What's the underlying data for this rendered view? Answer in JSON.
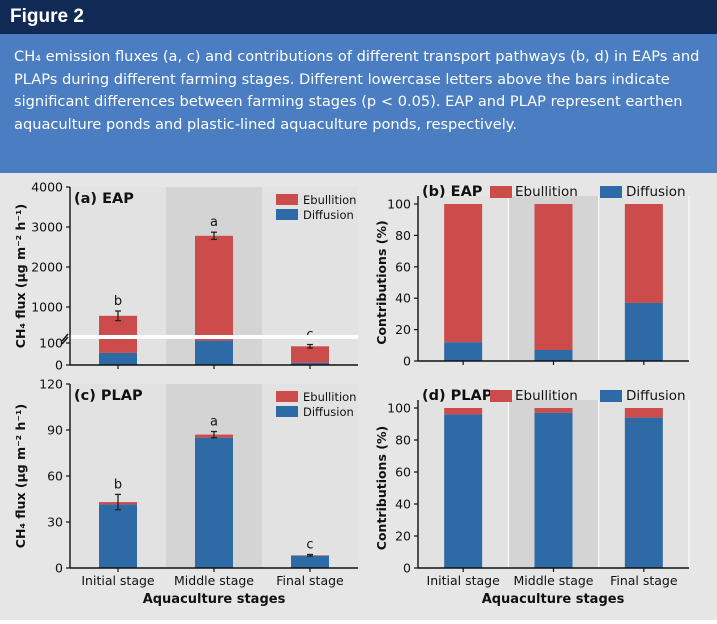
{
  "header": {
    "title": "Figure 2"
  },
  "caption": "CH₄ emission fluxes (a, c) and contributions of different transport pathways (b, d) in EAPs and PLAPs during different farming stages. Different lowercase letters above the bars indicate significant differences between farming stages (p < 0.05). EAP and PLAP represent earthen aquaculture ponds and plastic-lined aquaculture ponds, respectively.",
  "colors": {
    "ebullition": "#cc4b4b",
    "diffusion": "#2e6aa6",
    "header_bg": "#102a55",
    "caption_bg": "#4a7dc1"
  },
  "shared": {
    "xlabel": "Aquaculture stages",
    "categories": [
      "Initial stage",
      "Middle stage",
      "Final stage"
    ],
    "legend": {
      "ebullition": "Ebullition",
      "diffusion": "Diffusion"
    }
  },
  "chart_data": [
    {
      "id": "a",
      "type": "bar",
      "stacked": true,
      "title": "(a) EAP",
      "ylabel": "CH₄ flux (μg m⁻² h⁻¹)",
      "ylim": [
        0,
        4000
      ],
      "axis_break": true,
      "yticks": [
        0,
        100,
        1000,
        2000,
        3000,
        4000
      ],
      "categories": [
        "Initial stage",
        "Middle stage",
        "Final stage"
      ],
      "series": [
        {
          "name": "Diffusion",
          "values": [
            55,
            160,
            10
          ]
        },
        {
          "name": "Ebullition",
          "values": [
            725,
            2620,
            75
          ]
        }
      ],
      "totals": [
        780,
        2780,
        85
      ],
      "error_bars": [
        120,
        90,
        8
      ],
      "sig_letters": [
        "b",
        "a",
        "c"
      ],
      "legend_position": "top-right"
    },
    {
      "id": "b",
      "type": "bar",
      "stacked": true,
      "title": "(b) EAP",
      "ylabel": "Contributions (%)",
      "ylim": [
        0,
        100
      ],
      "yticks": [
        0,
        20,
        40,
        60,
        80,
        100
      ],
      "categories": [
        "Initial stage",
        "Middle stage",
        "Final stage"
      ],
      "series": [
        {
          "name": "Diffusion",
          "values": [
            12,
            7,
            37
          ]
        },
        {
          "name": "Ebullition",
          "values": [
            88,
            93,
            63
          ]
        }
      ],
      "legend_position": "top"
    },
    {
      "id": "c",
      "type": "bar",
      "stacked": true,
      "title": "(c) PLAP",
      "ylabel": "CH₄ flux (μg m⁻² h⁻¹)",
      "ylim": [
        0,
        120
      ],
      "yticks": [
        0,
        30,
        60,
        90,
        120
      ],
      "categories": [
        "Initial stage",
        "Middle stage",
        "Final stage"
      ],
      "series": [
        {
          "name": "Diffusion",
          "values": [
            41.5,
            85,
            8
          ]
        },
        {
          "name": "Ebullition",
          "values": [
            1.5,
            2,
            0.3
          ]
        }
      ],
      "totals": [
        43,
        87,
        8.3
      ],
      "error_bars": [
        5,
        2,
        0.5
      ],
      "sig_letters": [
        "b",
        "a",
        "c"
      ],
      "legend_position": "top-right"
    },
    {
      "id": "d",
      "type": "bar",
      "stacked": true,
      "title": "(d) PLAP",
      "ylabel": "Contributions (%)",
      "ylim": [
        0,
        100
      ],
      "yticks": [
        0,
        20,
        40,
        60,
        80,
        100
      ],
      "categories": [
        "Initial stage",
        "Middle stage",
        "Final stage"
      ],
      "series": [
        {
          "name": "Diffusion",
          "values": [
            96,
            97,
            94
          ]
        },
        {
          "name": "Ebullition",
          "values": [
            4,
            3,
            6
          ]
        }
      ],
      "legend_position": "top"
    }
  ]
}
